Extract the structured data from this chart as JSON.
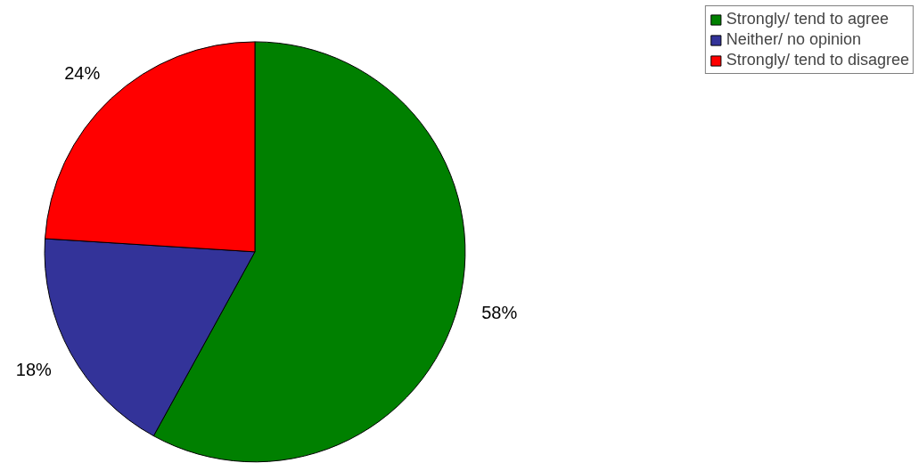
{
  "chart_data": {
    "type": "pie",
    "categories": [
      "Strongly/ tend to agree",
      "Neither/ no opinion",
      "Strongly/ tend to disagree"
    ],
    "values": [
      58,
      18,
      24
    ],
    "colors": [
      "#008000",
      "#333399",
      "#ff0000"
    ],
    "value_labels": [
      "58%",
      "18%",
      "24%"
    ],
    "legend": "top right"
  }
}
